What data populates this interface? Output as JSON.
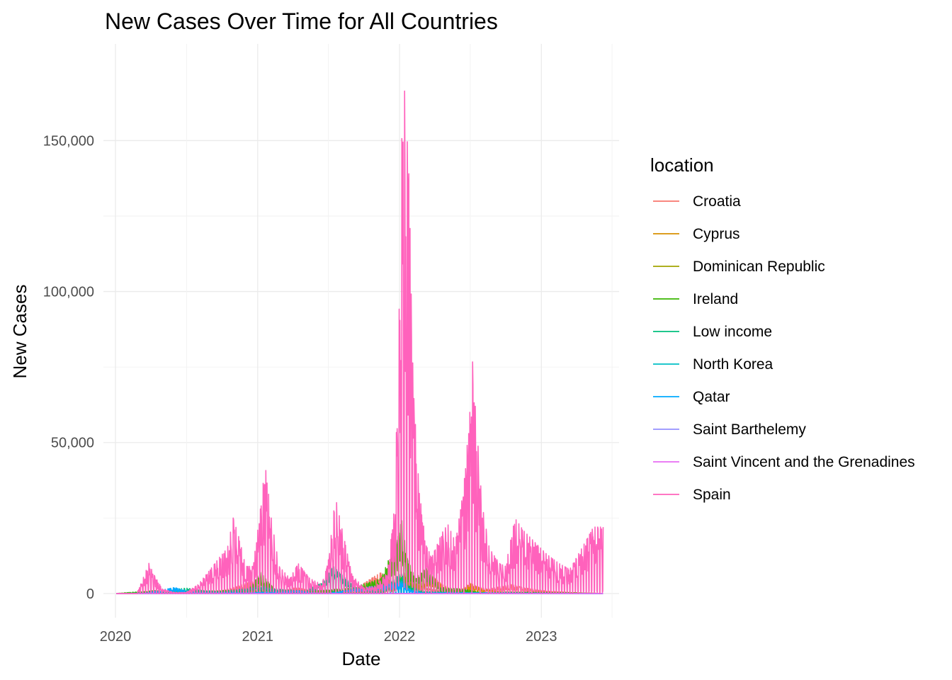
{
  "chart_data": {
    "type": "line",
    "title": "New Cases Over Time for All Countries",
    "xlabel": "Date",
    "ylabel": "New Cases",
    "legend_title": "location",
    "legend_position": "right",
    "grid": true,
    "x_range": [
      "2019-12-01",
      "2023-07-20"
    ],
    "y_range": [
      -8000,
      182000
    ],
    "x_ticks": [
      {
        "date": "2020-01-01",
        "label": "2020"
      },
      {
        "date": "2021-01-01",
        "label": "2021"
      },
      {
        "date": "2022-01-01",
        "label": "2022"
      },
      {
        "date": "2023-01-01",
        "label": "2023"
      }
    ],
    "y_ticks": [
      {
        "value": 0,
        "label": "0"
      },
      {
        "value": 50000,
        "label": "50,000"
      },
      {
        "value": 100000,
        "label": "100,000"
      },
      {
        "value": 150000,
        "label": "150,000"
      }
    ],
    "series": [
      {
        "name": "Croatia",
        "color": "#F8766D",
        "points": [
          [
            "2020-01-03",
            0
          ],
          [
            "2020-06-01",
            100
          ],
          [
            "2020-09-15",
            500
          ],
          [
            "2020-11-01",
            2000
          ],
          [
            "2020-12-01",
            3500
          ],
          [
            "2020-12-20",
            4000
          ],
          [
            "2021-01-15",
            1500
          ],
          [
            "2021-02-20",
            600
          ],
          [
            "2021-04-10",
            2000
          ],
          [
            "2021-05-01",
            1500
          ],
          [
            "2021-06-15",
            200
          ],
          [
            "2021-08-01",
            300
          ],
          [
            "2021-09-15",
            2000
          ],
          [
            "2021-10-20",
            5000
          ],
          [
            "2021-11-15",
            7000
          ],
          [
            "2021-12-10",
            4000
          ],
          [
            "2022-01-05",
            5000
          ],
          [
            "2022-01-20",
            8000
          ],
          [
            "2022-02-10",
            3000
          ],
          [
            "2022-03-20",
            1500
          ],
          [
            "2022-05-15",
            500
          ],
          [
            "2022-07-15",
            2500
          ],
          [
            "2022-08-15",
            1500
          ],
          [
            "2022-10-15",
            3000
          ],
          [
            "2022-11-15",
            2000
          ],
          [
            "2023-01-15",
            800
          ],
          [
            "2023-04-01",
            200
          ],
          [
            "2023-06-09",
            0
          ]
        ]
      },
      {
        "name": "Cyprus",
        "color": "#D89000",
        "points": [
          [
            "2020-01-03",
            0
          ],
          [
            "2020-10-01",
            100
          ],
          [
            "2020-12-20",
            700
          ],
          [
            "2021-01-20",
            400
          ],
          [
            "2021-03-25",
            900
          ],
          [
            "2021-05-10",
            200
          ],
          [
            "2021-07-10",
            1100
          ],
          [
            "2021-08-20",
            200
          ],
          [
            "2021-11-20",
            500
          ],
          [
            "2021-12-25",
            4000
          ],
          [
            "2022-01-10",
            5500
          ],
          [
            "2022-02-01",
            2500
          ],
          [
            "2022-03-25",
            6000
          ],
          [
            "2022-04-20",
            3000
          ],
          [
            "2022-06-01",
            500
          ],
          [
            "2022-07-01",
            3500
          ],
          [
            "2022-08-01",
            1500
          ],
          [
            "2022-10-01",
            400
          ],
          [
            "2023-01-01",
            600
          ],
          [
            "2023-06-09",
            0
          ]
        ]
      },
      {
        "name": "Dominican Republic",
        "color": "#A3A500",
        "points": [
          [
            "2020-01-03",
            0
          ],
          [
            "2020-05-01",
            400
          ],
          [
            "2020-07-20",
            1200
          ],
          [
            "2020-09-01",
            800
          ],
          [
            "2021-01-10",
            1600
          ],
          [
            "2021-02-20",
            700
          ],
          [
            "2021-05-20",
            1200
          ],
          [
            "2021-06-20",
            700
          ],
          [
            "2021-09-01",
            300
          ],
          [
            "2021-12-20",
            2000
          ],
          [
            "2022-01-10",
            7000
          ],
          [
            "2022-01-25",
            4000
          ],
          [
            "2022-03-01",
            400
          ],
          [
            "2022-05-20",
            1200
          ],
          [
            "2022-07-01",
            300
          ],
          [
            "2022-11-01",
            100
          ],
          [
            "2023-06-09",
            0
          ]
        ]
      },
      {
        "name": "Ireland",
        "color": "#39B600",
        "points": [
          [
            "2020-01-03",
            0
          ],
          [
            "2020-04-15",
            1000
          ],
          [
            "2020-06-01",
            100
          ],
          [
            "2020-10-20",
            1200
          ],
          [
            "2020-12-01",
            300
          ],
          [
            "2021-01-08",
            7000
          ],
          [
            "2021-02-15",
            1200
          ],
          [
            "2021-04-15",
            500
          ],
          [
            "2021-07-20",
            1500
          ],
          [
            "2021-09-01",
            1800
          ],
          [
            "2021-11-15",
            5000
          ],
          [
            "2021-12-31",
            20000
          ],
          [
            "2022-01-05",
            26000
          ],
          [
            "2022-01-20",
            12000
          ],
          [
            "2022-02-10",
            5000
          ],
          [
            "2022-03-15",
            9000
          ],
          [
            "2022-04-15",
            2000
          ],
          [
            "2022-06-15",
            1500
          ],
          [
            "2022-08-01",
            300
          ],
          [
            "2022-10-15",
            500
          ],
          [
            "2023-06-09",
            0
          ]
        ]
      },
      {
        "name": "Low income",
        "color": "#00BF7D",
        "points": [
          [
            "2020-01-03",
            0
          ],
          [
            "2020-04-01",
            200
          ],
          [
            "2020-07-01",
            1800
          ],
          [
            "2020-08-15",
            1000
          ],
          [
            "2020-10-01",
            600
          ],
          [
            "2021-01-15",
            2500
          ],
          [
            "2021-02-15",
            1500
          ],
          [
            "2021-05-01",
            900
          ],
          [
            "2021-06-15",
            3500
          ],
          [
            "2021-07-15",
            9000
          ],
          [
            "2021-08-15",
            5000
          ],
          [
            "2021-09-15",
            1500
          ],
          [
            "2021-11-15",
            600
          ],
          [
            "2022-01-05",
            7000
          ],
          [
            "2022-01-20",
            3000
          ],
          [
            "2022-03-01",
            700
          ],
          [
            "2022-06-01",
            400
          ],
          [
            "2022-08-01",
            300
          ],
          [
            "2022-12-01",
            100
          ],
          [
            "2023-06-09",
            0
          ]
        ]
      },
      {
        "name": "North Korea",
        "color": "#00BFC4",
        "points": [
          [
            "2020-01-03",
            0
          ],
          [
            "2023-06-09",
            0
          ]
        ]
      },
      {
        "name": "Qatar",
        "color": "#00A9FF",
        "points": [
          [
            "2020-01-03",
            0
          ],
          [
            "2020-03-15",
            100
          ],
          [
            "2020-05-01",
            1200
          ],
          [
            "2020-06-01",
            2000
          ],
          [
            "2020-07-15",
            500
          ],
          [
            "2020-09-01",
            200
          ],
          [
            "2021-03-01",
            500
          ],
          [
            "2021-04-15",
            900
          ],
          [
            "2021-05-15",
            300
          ],
          [
            "2021-07-01",
            100
          ],
          [
            "2022-01-10",
            4000
          ],
          [
            "2022-01-25",
            1500
          ],
          [
            "2022-03-01",
            200
          ],
          [
            "2022-06-01",
            300
          ],
          [
            "2023-06-09",
            0
          ]
        ]
      },
      {
        "name": "Saint Barthelemy",
        "color": "#9590FF",
        "points": [
          [
            "2020-01-03",
            0
          ],
          [
            "2023-06-09",
            0
          ]
        ]
      },
      {
        "name": "Saint Vincent and the Grenadines",
        "color": "#E76BF3",
        "points": [
          [
            "2020-01-03",
            0
          ],
          [
            "2023-06-09",
            0
          ]
        ]
      },
      {
        "name": "Spain",
        "color": "#FF62BC",
        "points": [
          [
            "2020-01-03",
            0
          ],
          [
            "2020-02-25",
            0
          ],
          [
            "2020-03-15",
            6000
          ],
          [
            "2020-03-27",
            10000
          ],
          [
            "2020-04-10",
            6000
          ],
          [
            "2020-05-01",
            1500
          ],
          [
            "2020-06-01",
            300
          ],
          [
            "2020-07-01",
            400
          ],
          [
            "2020-08-01",
            3000
          ],
          [
            "2020-09-01",
            8000
          ],
          [
            "2020-09-25",
            12000
          ],
          [
            "2020-10-15",
            15000
          ],
          [
            "2020-10-30",
            25000
          ],
          [
            "2020-11-15",
            18000
          ],
          [
            "2020-12-01",
            9000
          ],
          [
            "2020-12-20",
            9000
          ],
          [
            "2021-01-10",
            30000
          ],
          [
            "2021-01-20",
            43000
          ],
          [
            "2021-02-05",
            25000
          ],
          [
            "2021-02-25",
            9000
          ],
          [
            "2021-03-25",
            5000
          ],
          [
            "2021-04-15",
            10000
          ],
          [
            "2021-05-15",
            5000
          ],
          [
            "2021-06-15",
            3000
          ],
          [
            "2021-07-01",
            10000
          ],
          [
            "2021-07-20",
            32000
          ],
          [
            "2021-08-05",
            22000
          ],
          [
            "2021-09-01",
            6000
          ],
          [
            "2021-10-01",
            2000
          ],
          [
            "2021-11-01",
            2500
          ],
          [
            "2021-12-01",
            7000
          ],
          [
            "2021-12-20",
            30000
          ],
          [
            "2022-01-01",
            100000
          ],
          [
            "2022-01-10",
            176000
          ],
          [
            "2022-01-25",
            140000
          ],
          [
            "2022-02-05",
            70000
          ],
          [
            "2022-02-20",
            35000
          ],
          [
            "2022-03-10",
            16000
          ],
          [
            "2022-03-25",
            12000
          ],
          [
            "2022-04-20",
            20000
          ],
          [
            "2022-05-05",
            23000
          ],
          [
            "2022-05-25",
            17000
          ],
          [
            "2022-06-15",
            35000
          ],
          [
            "2022-07-01",
            60000
          ],
          [
            "2022-07-05",
            83000
          ],
          [
            "2022-07-15",
            62000
          ],
          [
            "2022-08-01",
            30000
          ],
          [
            "2022-08-20",
            15000
          ],
          [
            "2022-09-15",
            10000
          ],
          [
            "2022-10-01",
            9000
          ],
          [
            "2022-10-25",
            25000
          ],
          [
            "2022-11-15",
            21000
          ],
          [
            "2022-12-15",
            17000
          ],
          [
            "2023-01-15",
            13000
          ],
          [
            "2023-02-15",
            10000
          ],
          [
            "2023-03-15",
            8000
          ],
          [
            "2023-04-15",
            15000
          ],
          [
            "2023-05-15",
            22000
          ],
          [
            "2023-06-09",
            22000
          ]
        ]
      }
    ]
  }
}
